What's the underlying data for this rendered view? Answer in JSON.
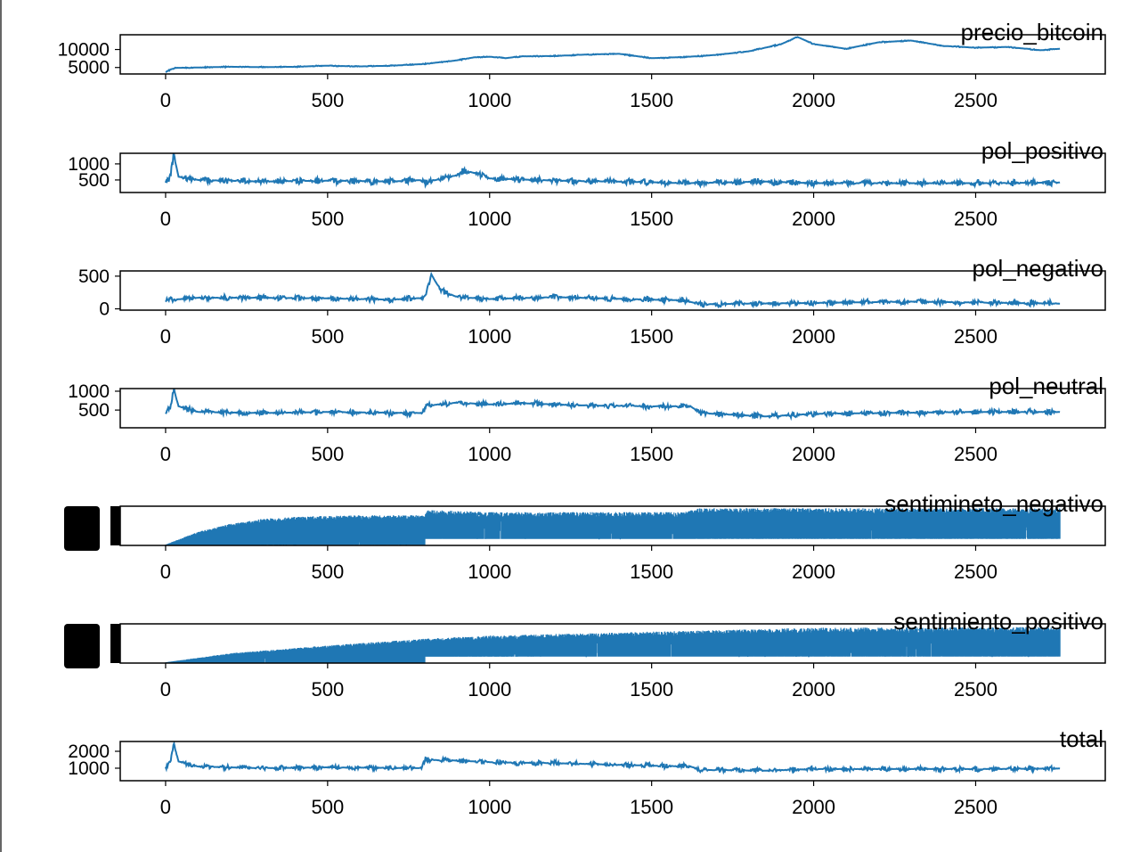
{
  "chart_data": [
    {
      "type": "line",
      "title": "precio_bitcoin",
      "xlim": [
        -140,
        2900
      ],
      "ylim": [
        3200,
        14100
      ],
      "xticks": [
        0,
        500,
        1000,
        1500,
        2000,
        2500
      ],
      "yticks": [
        5000,
        10000
      ],
      "yticklabels": [
        "5000",
        "10000"
      ],
      "noise": 150,
      "color": "#1f77b4",
      "x": [
        0,
        30,
        100,
        200,
        300,
        400,
        500,
        600,
        700,
        800,
        900,
        950,
        1000,
        1050,
        1100,
        1200,
        1300,
        1400,
        1500,
        1600,
        1700,
        1800,
        1900,
        1950,
        2000,
        2100,
        2200,
        2300,
        2400,
        2500,
        2600,
        2700,
        2760
      ],
      "y": [
        3800,
        4900,
        5000,
        5200,
        5100,
        5200,
        5500,
        5300,
        5500,
        6000,
        7000,
        7800,
        8000,
        7600,
        8100,
        8200,
        8600,
        8800,
        7600,
        7900,
        8500,
        9500,
        11500,
        13500,
        11500,
        10200,
        12000,
        12500,
        11000,
        10500,
        10700,
        9800,
        10200
      ]
    },
    {
      "type": "line",
      "title": "pol_positivo",
      "xlim": [
        -140,
        2900
      ],
      "ylim": [
        110,
        1330
      ],
      "xticks": [
        0,
        500,
        1000,
        1500,
        2000,
        2500
      ],
      "yticks": [
        500,
        1000
      ],
      "yticklabels": [
        "500",
        "1000"
      ],
      "noise": 110,
      "color": "#1f77b4",
      "x": [
        0,
        15,
        25,
        40,
        100,
        300,
        500,
        700,
        790,
        800,
        900,
        920,
        960,
        1000,
        1200,
        1500,
        1600,
        1850,
        2000,
        2500,
        2760
      ],
      "y": [
        450,
        600,
        1300,
        600,
        500,
        450,
        480,
        450,
        500,
        420,
        650,
        800,
        700,
        550,
        480,
        430,
        400,
        450,
        400,
        400,
        420
      ]
    },
    {
      "type": "line",
      "title": "pol_negativo",
      "xlim": [
        -140,
        2900
      ],
      "ylim": [
        -20,
        580
      ],
      "xticks": [
        0,
        500,
        1000,
        1500,
        2000,
        2500
      ],
      "yticks": [
        0,
        500
      ],
      "yticklabels": [
        "0",
        "500"
      ],
      "noise": 45,
      "color": "#1f77b4",
      "x": [
        0,
        100,
        300,
        500,
        700,
        800,
        820,
        850,
        900,
        1000,
        1200,
        1500,
        1600,
        1650,
        2000,
        2300,
        2760
      ],
      "y": [
        130,
        170,
        170,
        160,
        140,
        170,
        520,
        280,
        180,
        150,
        180,
        140,
        130,
        70,
        90,
        110,
        80
      ]
    },
    {
      "type": "line",
      "title": "pol_neutral",
      "xlim": [
        -140,
        2900
      ],
      "ylim": [
        30,
        1070
      ],
      "xticks": [
        0,
        500,
        1000,
        1500,
        2000,
        2500
      ],
      "yticks": [
        500,
        1000
      ],
      "yticklabels": [
        "500",
        "1000"
      ],
      "noise": 80,
      "color": "#1f77b4",
      "x": [
        0,
        15,
        25,
        40,
        100,
        300,
        500,
        790,
        810,
        900,
        1000,
        1100,
        1300,
        1500,
        1620,
        1650,
        1850,
        2000,
        2500,
        2760
      ],
      "y": [
        420,
        600,
        1050,
        600,
        450,
        420,
        450,
        420,
        620,
        700,
        650,
        680,
        620,
        600,
        600,
        420,
        330,
        400,
        450,
        450
      ]
    },
    {
      "type": "area",
      "title": "sentimineto_negativo",
      "xlim": [
        -140,
        2900
      ],
      "ylim": [
        0,
        1
      ],
      "xticks": [
        0,
        500,
        1000,
        1500,
        2000,
        2500
      ],
      "yticks": [],
      "yticklabels": [],
      "noise": 0,
      "color": "#1f77b4",
      "x": [
        0,
        100,
        200,
        300,
        400,
        500,
        800,
        810,
        830,
        1000,
        1600,
        1650,
        2000,
        2760
      ],
      "y": [
        0.02,
        0.35,
        0.55,
        0.68,
        0.73,
        0.76,
        0.78,
        0.9,
        0.9,
        0.85,
        0.85,
        0.95,
        0.95,
        0.95
      ]
    },
    {
      "type": "area",
      "title": "sentimiento_positivo",
      "xlim": [
        -140,
        2900
      ],
      "ylim": [
        0,
        1
      ],
      "xticks": [
        0,
        500,
        1000,
        1500,
        2000,
        2500
      ],
      "yticks": [],
      "yticklabels": [],
      "noise": 0,
      "color": "#1f77b4",
      "x": [
        0,
        200,
        500,
        800,
        1000,
        1500,
        1900,
        2000,
        2760
      ],
      "y": [
        0.02,
        0.25,
        0.45,
        0.62,
        0.7,
        0.8,
        0.88,
        0.9,
        0.92
      ]
    },
    {
      "type": "line",
      "title": "total",
      "xlim": [
        -140,
        2900
      ],
      "ylim": [
        260,
        2580
      ],
      "xticks": [
        0,
        500,
        1000,
        1500,
        2000,
        2500
      ],
      "yticks": [
        1000,
        2000
      ],
      "yticklabels": [
        "1000",
        "2000"
      ],
      "noise": 160,
      "color": "#1f77b4",
      "x": [
        0,
        15,
        25,
        40,
        100,
        300,
        500,
        790,
        800,
        900,
        1000,
        1200,
        1500,
        1620,
        1650,
        1850,
        2000,
        2500,
        2760
      ],
      "y": [
        1000,
        1400,
        2450,
        1400,
        1100,
        1000,
        1050,
        1000,
        1500,
        1450,
        1350,
        1300,
        1150,
        1100,
        900,
        850,
        950,
        950,
        980
      ]
    }
  ]
}
